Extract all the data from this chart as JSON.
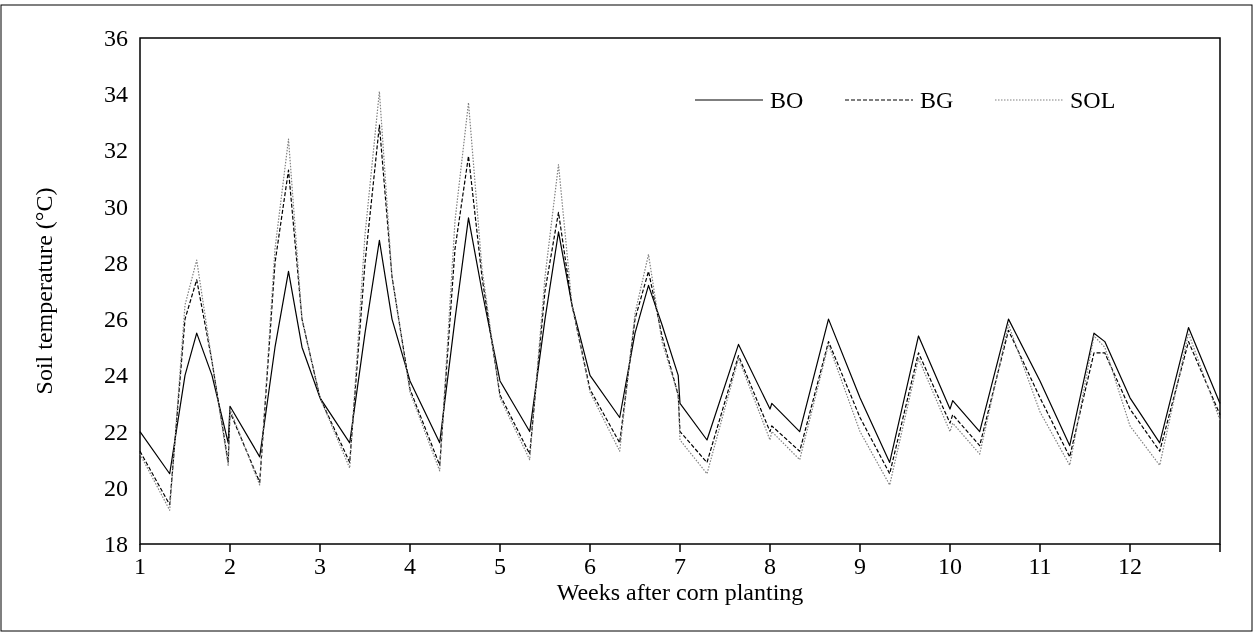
{
  "chart_data": {
    "type": "line",
    "xlabel": "Weeks after corn planting",
    "ylabel": "Soil temperature (°C)",
    "x": [
      1,
      1.33,
      1.5,
      1.63,
      1.8,
      1.98,
      2.0,
      2.33,
      2.5,
      2.65,
      2.8,
      3.0,
      3.33,
      3.5,
      3.66,
      3.8,
      4.0,
      4.33,
      4.5,
      4.65,
      4.8,
      5.0,
      5.33,
      5.5,
      5.65,
      5.8,
      6.0,
      6.33,
      6.5,
      6.65,
      6.8,
      6.98,
      7.0,
      7.3,
      7.65,
      8.0,
      8.02,
      8.33,
      8.65,
      9.0,
      9.33,
      9.65,
      10.0,
      10.03,
      10.33,
      10.65,
      11.0,
      11.33,
      11.6,
      11.72,
      12.0,
      12.33,
      12.65,
      13.0
    ],
    "series": [
      {
        "name": "BO",
        "color": "#000000",
        "line_style": "solid",
        "values": [
          22.0,
          20.5,
          24,
          25.5,
          24,
          21.6,
          22.9,
          21.1,
          25,
          27.7,
          25,
          23.2,
          21.6,
          25.5,
          28.8,
          26,
          23.8,
          21.6,
          26,
          29.6,
          27,
          23.8,
          22.0,
          26,
          29.1,
          26.5,
          24.0,
          22.5,
          25.5,
          27.2,
          25.8,
          24.0,
          23.0,
          21.7,
          25.1,
          22.8,
          23.0,
          22.0,
          26.0,
          23.2,
          20.9,
          25.4,
          22.8,
          23.1,
          22.0,
          26.0,
          23.8,
          21.5,
          25.5,
          25.2,
          23.2,
          21.6,
          25.7,
          23.0
        ]
      },
      {
        "name": "BG",
        "color": "#000000",
        "line_style": "dashed",
        "values": [
          21.3,
          19.4,
          26,
          27.4,
          24.5,
          20.9,
          22.7,
          20.2,
          28,
          31.3,
          26,
          23.2,
          20.9,
          28,
          32.9,
          27.5,
          23.5,
          20.8,
          28.5,
          31.8,
          27.5,
          23.3,
          21.2,
          27,
          29.8,
          26.5,
          23.5,
          21.6,
          26,
          27.7,
          25.4,
          23.3,
          22.0,
          20.9,
          24.7,
          22.0,
          22.2,
          21.3,
          25.2,
          22.5,
          20.5,
          24.8,
          22.3,
          22.6,
          21.5,
          25.6,
          23.2,
          21.1,
          24.8,
          24.8,
          22.8,
          21.3,
          25.2,
          22.6
        ]
      },
      {
        "name": "SOL",
        "color": "#808080",
        "line_style": "dotted",
        "values": [
          21.2,
          19.2,
          26.5,
          28.1,
          24.5,
          20.8,
          22.8,
          20.1,
          28.5,
          32.4,
          26,
          23.2,
          20.7,
          29,
          34.1,
          27.5,
          23.4,
          20.6,
          29.5,
          33.7,
          27.8,
          23.2,
          21.0,
          27.5,
          31.5,
          26.5,
          23.4,
          21.3,
          26.2,
          28.3,
          25.2,
          23.3,
          21.7,
          20.5,
          24.6,
          21.7,
          22.0,
          21.0,
          25.1,
          22.0,
          20.1,
          24.6,
          22.0,
          22.3,
          21.2,
          25.8,
          22.7,
          20.8,
          25.4,
          25.0,
          22.2,
          20.8,
          25.5,
          22.4
        ]
      }
    ],
    "xlim": [
      1,
      13
    ],
    "xticks": [
      1,
      2,
      3,
      4,
      5,
      6,
      7,
      8,
      9,
      10,
      11,
      12,
      {
        "value": 13,
        "label": null
      }
    ],
    "ylim": [
      18,
      36
    ],
    "yticks": [
      18,
      20,
      22,
      24,
      26,
      28,
      30,
      32,
      34,
      36
    ],
    "grid": false,
    "legend": "top right",
    "marker": "none"
  }
}
